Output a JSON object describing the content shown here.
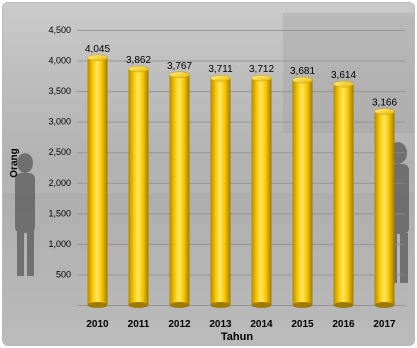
{
  "chart_data": {
    "type": "bar",
    "title": "",
    "xlabel": "Tahun",
    "ylabel": "Orang",
    "categories": [
      "2010",
      "2011",
      "2012",
      "2013",
      "2014",
      "2015",
      "2016",
      "2017"
    ],
    "values": [
      4045,
      3862,
      3767,
      3711,
      3712,
      3681,
      3614,
      3166
    ],
    "value_labels": [
      "4,045",
      "3,862",
      "3,767",
      "3,711",
      "3,712",
      "3,681",
      "3,614",
      "3,166"
    ],
    "ylim": [
      0,
      4500
    ],
    "yticks": [
      0,
      500,
      1000,
      1500,
      2000,
      2500,
      3000,
      3500,
      4000,
      4500
    ],
    "ytick_labels": [
      "",
      "500",
      "1,000",
      "1,500",
      "2,000",
      "2,500",
      "3,000",
      "3,500",
      "4,000",
      "4,500"
    ],
    "grid": true,
    "legend": "none",
    "bar_style": "3d-cylinder",
    "colors": {
      "bar_light": "#FFE760",
      "bar_mid": "#F7C600",
      "bar_dark": "#B38A00",
      "grid": "#8c8c8c",
      "text": "#000000"
    }
  }
}
